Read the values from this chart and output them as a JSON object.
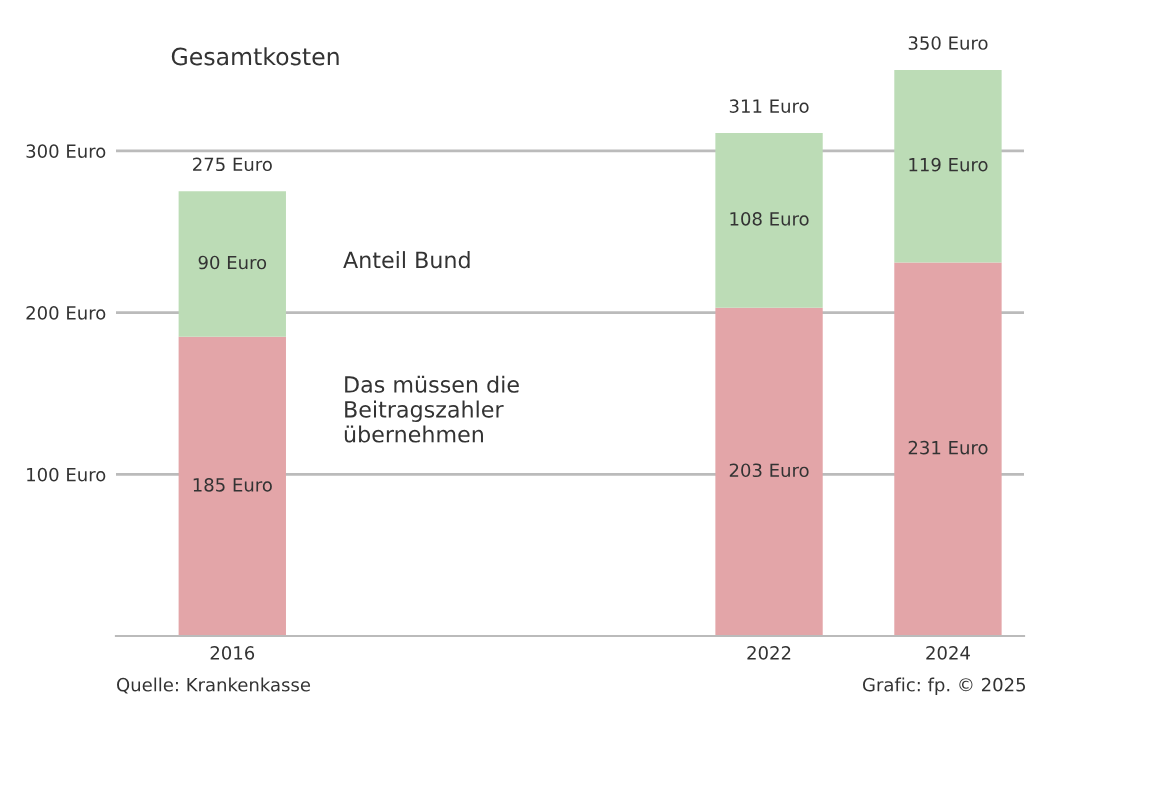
{
  "chart_data": {
    "type": "bar",
    "stacked": true,
    "x": [
      2016,
      2022,
      2024
    ],
    "series": [
      {
        "color": "#e3a5a8",
        "values": [
          185,
          203,
          231
        ],
        "value_labels": [
          "185 Euro",
          "203 Euro",
          "231 Euro"
        ]
      },
      {
        "color": "#bcdcb6",
        "values": [
          90,
          108,
          119
        ],
        "value_labels": [
          "90 Euro",
          "108 Euro",
          "119 Euro"
        ]
      }
    ],
    "totals": [
      "275 Euro",
      "311 Euro",
      "350 Euro"
    ],
    "xlim": [
      2014.7,
      2024.85
    ],
    "xticks": [
      2016,
      2022,
      2024
    ],
    "ylim": [
      0,
      350
    ],
    "yticks": [
      {
        "value": 100,
        "label": "100 Euro"
      },
      {
        "value": 200,
        "label": "200 Euro"
      },
      {
        "value": 300,
        "label": "300 Euro"
      }
    ],
    "grid": "y",
    "legend": false,
    "annotations": [
      "Gesamtkosten",
      "Anteil Bund",
      "Das müssen die\nBeitragszahler\nübernehmen",
      "Quelle: Krankenkasse",
      "Grafic: fp. © 2025"
    ]
  }
}
